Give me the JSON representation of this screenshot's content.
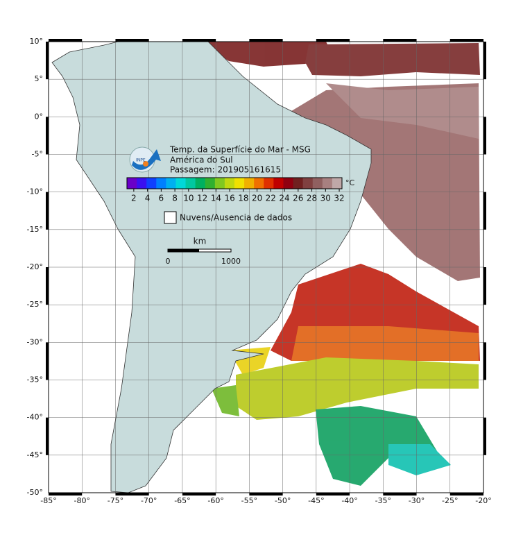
{
  "map": {
    "title_lines": [
      "Temp. da Superfície do Mar - MSG",
      "América do Sul",
      "Passagem: 201905161615"
    ],
    "logo": "INPE",
    "xlim": [
      -85,
      -20
    ],
    "ylim": [
      -50,
      10
    ],
    "xticks": [
      {
        "value": -85,
        "label": "-85°"
      },
      {
        "value": -80,
        "label": "-80°"
      },
      {
        "value": -75,
        "label": "-75°"
      },
      {
        "value": -70,
        "label": "-70°"
      },
      {
        "value": -65,
        "label": "-65°"
      },
      {
        "value": -60,
        "label": "-60°"
      },
      {
        "value": -55,
        "label": "-55°"
      },
      {
        "value": -50,
        "label": "-50°"
      },
      {
        "value": -45,
        "label": "-45°"
      },
      {
        "value": -40,
        "label": "-40°"
      },
      {
        "value": -35,
        "label": "-35°"
      },
      {
        "value": -30,
        "label": "-30°"
      },
      {
        "value": -25,
        "label": "-25°"
      },
      {
        "value": -20,
        "label": "-20°"
      }
    ],
    "yticks": [
      {
        "value": 10,
        "label": "10°"
      },
      {
        "value": 5,
        "label": "5°"
      },
      {
        "value": 0,
        "label": "0°"
      },
      {
        "value": -5,
        "label": "-5°"
      },
      {
        "value": -10,
        "label": "-10°"
      },
      {
        "value": -15,
        "label": "-15°"
      },
      {
        "value": -20,
        "label": "-20°"
      },
      {
        "value": -25,
        "label": "-25°"
      },
      {
        "value": -30,
        "label": "-30°"
      },
      {
        "value": -35,
        "label": "-35°"
      },
      {
        "value": -40,
        "label": "-40°"
      },
      {
        "value": -45,
        "label": "-45°"
      },
      {
        "value": -50,
        "label": "-50°"
      }
    ],
    "colorbar": {
      "lim": [
        1,
        32.4
      ],
      "ticks": [
        2,
        4,
        6,
        8,
        10,
        12,
        14,
        16,
        18,
        20,
        22,
        24,
        26,
        28,
        30,
        32
      ],
      "unit": "°C",
      "colors": [
        "#6a00c8",
        "#3a10f0",
        "#1040ff",
        "#0080ff",
        "#00b0f0",
        "#00d8d8",
        "#00c8a0",
        "#00b060",
        "#30b030",
        "#80c820",
        "#c0d810",
        "#f0e000",
        "#f0b000",
        "#f07000",
        "#e03000",
        "#c00000",
        "#900010",
        "#702020",
        "#804040",
        "#906060",
        "#a88080",
        "#c0a8a8"
      ]
    },
    "legend": "Nuvens/Ausencia de dados",
    "scale": {
      "unit": "km",
      "labels": [
        "0",
        "1000"
      ]
    }
  }
}
